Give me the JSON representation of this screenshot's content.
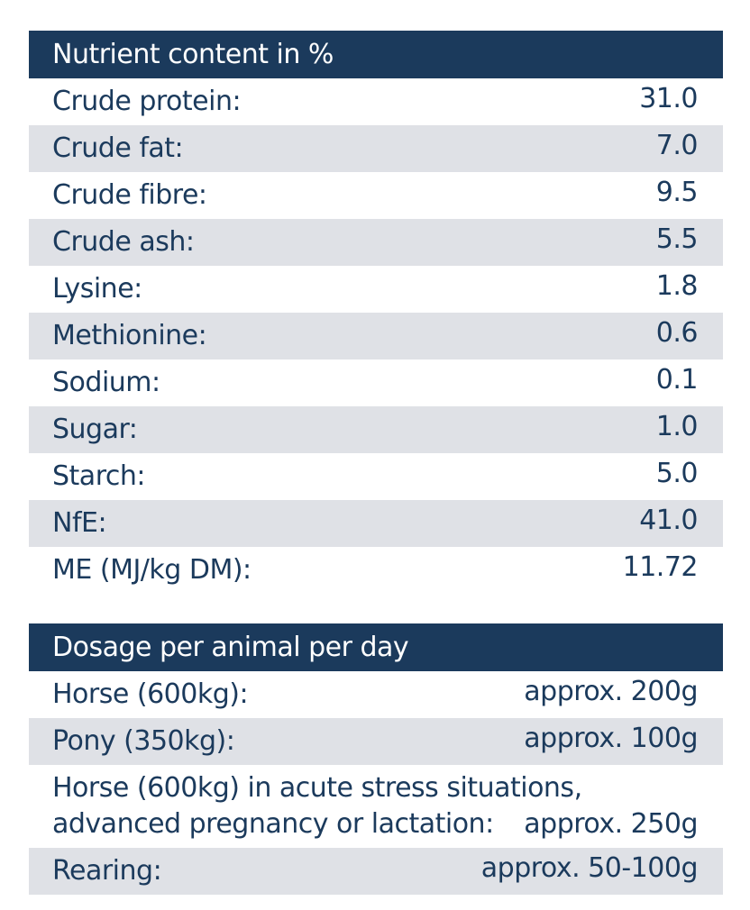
{
  "nutrients": {
    "title": "Nutrient content in %",
    "rows": [
      {
        "label": "Crude protein:",
        "value": "31.0"
      },
      {
        "label": "Crude fat:",
        "value": "7.0"
      },
      {
        "label": "Crude fibre:",
        "value": "9.5"
      },
      {
        "label": "Crude ash:",
        "value": "5.5"
      },
      {
        "label": "Lysine:",
        "value": "1.8"
      },
      {
        "label": "Methionine:",
        "value": "0.6"
      },
      {
        "label": "Sodium:",
        "value": "0.1"
      },
      {
        "label": "Sugar:",
        "value": "1.0"
      },
      {
        "label": "Starch:",
        "value": "5.0"
      },
      {
        "label": "NfE:",
        "value": "41.0"
      },
      {
        "label": "ME (MJ/kg DM):",
        "value": "11.72"
      }
    ]
  },
  "dosage": {
    "title": "Dosage per animal per day",
    "rows": [
      {
        "label": "Horse (600kg):",
        "value": "approx. 200g"
      },
      {
        "label": "Pony (350kg):",
        "value": "approx. 100g"
      },
      {
        "label_line1": "Horse (600kg) in acute stress situations,",
        "label_line2": "advanced pregnancy or lactation:",
        "value": "approx. 250g"
      },
      {
        "label": "Rearing:",
        "value": "approx. 50-100g"
      }
    ]
  },
  "colors": {
    "header_bg": "#1b3a5c",
    "text": "#1b3a5c",
    "alt_row_bg": "#dfe1e6"
  }
}
